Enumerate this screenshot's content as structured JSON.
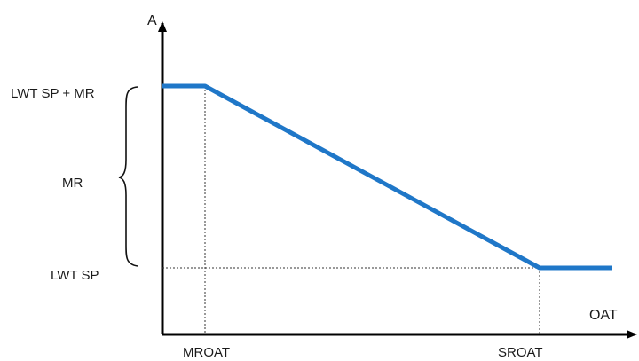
{
  "y_axis": {
    "name": "A"
  },
  "x_axis": {
    "name": "OAT"
  },
  "y_labels": {
    "upper": "LWT SP + MR",
    "range": "MR",
    "lower": "LWT SP"
  },
  "x_labels": {
    "left": "MROAT",
    "right": "SROAT"
  },
  "curve_color": "#1f77c8",
  "axis_color": "#000000",
  "guide_color": "#333333"
}
